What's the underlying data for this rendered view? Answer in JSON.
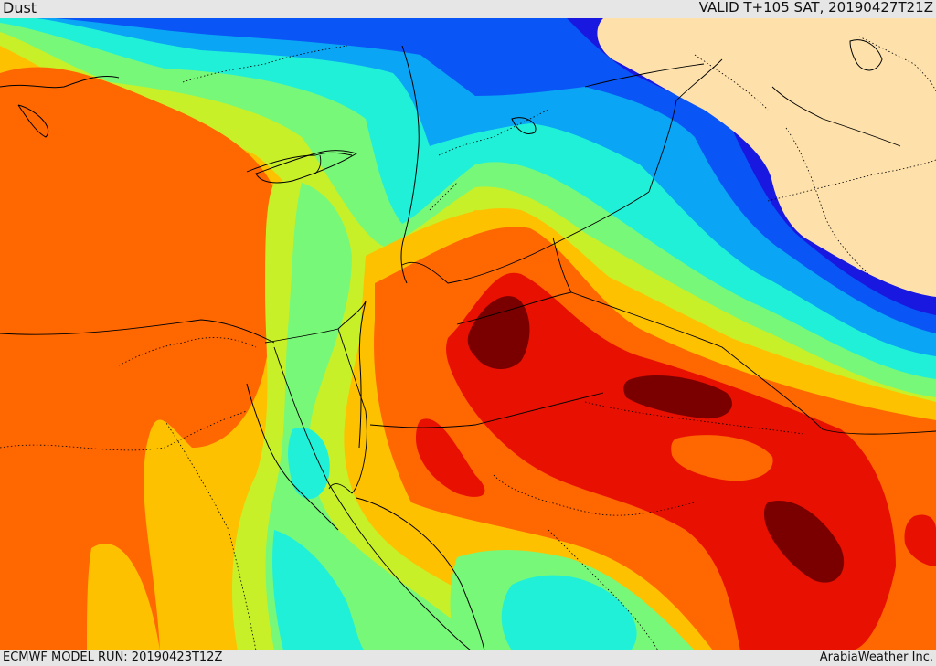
{
  "header": {
    "title": "Dust",
    "valid_time": "VALID T+105 SAT, 20190427T21Z"
  },
  "footer": {
    "model_run": "ECMWF MODEL RUN: 20190423T12Z",
    "credit": "ArabiaWeather Inc."
  },
  "palette": {
    "land_no_data": "#fde0aa",
    "level_1": "#1818e0",
    "level_2": "#0a55f5",
    "level_3": "#0aa5f5",
    "level_4": "#20f0d8",
    "level_5": "#78f878",
    "level_6": "#c8f028",
    "level_7": "#fec100",
    "level_8": "#ff6700",
    "level_9": "#e81000",
    "level_10": "#7a0000",
    "boundary_line": "#000000"
  }
}
